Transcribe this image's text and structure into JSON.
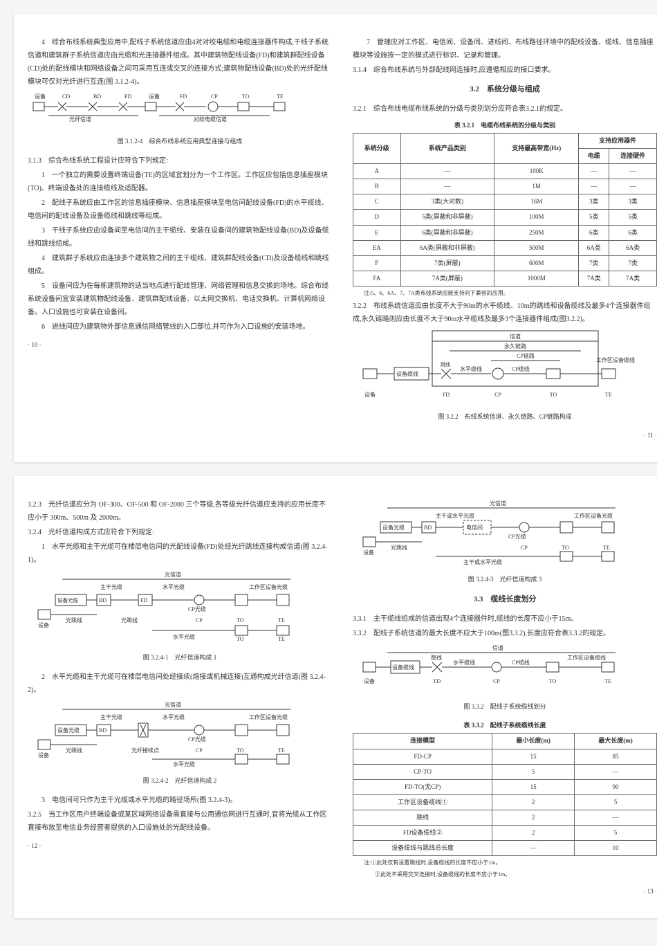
{
  "page1": {
    "left": {
      "p4": "4　综合布线系统典型应用中,配线子系统信道应由4对对绞电缆和电缆连接器件构成,干线子系统信道和建筑群子系统信道应由光缆和光连接器件组成。其中建筑物配线设备(FD)和建筑群配线设备(CD)处的配线模块和网络设备之间可采用互连或交叉的连接方式;建筑物配线设备(BD)处的光纤配线模块可仅对光纤进行互连(图 3.1.2-4)。",
      "fig312_4_cap": "图 3.1.2-4　综合布线系统应用典型连接与组成",
      "s313": "3.1.3　综合布线系统工程设计应符合下列规定:",
      "s313_1": "1　一个独立的需要设置终端设备(TE)的区域宜划分为一个工作区。工作区应包括信息插座模块(TO)、终端设备处的连接缆线及适配器。",
      "s313_2": "2　配线子系统应由工作区的信息插座模块、信息插座模块至电信间配线设备(FD)的水平缆线、电信间的配线设备及设备缆线和跳线等组成。",
      "s313_3": "3　干线子系统应由设备间至电信间的主干缆线、安装在设备间的建筑物配线设备(BD)及设备缆线和跳线组成。",
      "s313_4": "4　建筑群子系统应由连接多个建筑物之间的主干缆线、建筑群配线设备(CD)及设备缆线和跳线组成。",
      "s313_5": "5　设备间应为在每栋建筑物的适当地点进行配线管理、网络管理和信息交换的场地。综合布线系统设备间宜安装建筑物配线设备、建筑群配线设备、以太网交换机、电话交换机、计算机网络设备。入口设施也可安装在设备间。",
      "s313_6": "6　进线间应为建筑物外部信息通信网络管线的入口部位,并可作为入口设施的安装场地。",
      "pg": "· 10 ·"
    },
    "right": {
      "p7": "7　管理应对工作区、电信间、设备间、进线间、布线路径环境中的配线设备、缆线、信息插座模块等设施按一定的模式进行标识、记录和管理。",
      "s314": "3.1.4　综合布线系统与外部配线网连接时,应遵循相应的接口要求。",
      "title32": "3.2　系统分级与组成",
      "s321": "3.2.1　综合布线电缆布线系统的分级与类别划分应符合表3.2.1的规定。",
      "tbl321_cap": "表 3.2.1　电缆布线系统的分级与类别",
      "tbl321_head": [
        "系统分级",
        "系统产品类别",
        "支持最高带宽(Hz)",
        "支持应用器件"
      ],
      "tbl321_sub": [
        "电缆",
        "连接硬件"
      ],
      "tbl321_rows": [
        [
          "A",
          "—",
          "100K",
          "—",
          "—"
        ],
        [
          "B",
          "—",
          "1M",
          "—",
          "—"
        ],
        [
          "C",
          "3类(大对数)",
          "16M",
          "3类",
          "3类"
        ],
        [
          "D",
          "5类(屏蔽和非屏蔽)",
          "100M",
          "5类",
          "5类"
        ],
        [
          "E",
          "6类(屏蔽和非屏蔽)",
          "250M",
          "6类",
          "6类"
        ],
        [
          "EA",
          "6A类(屏蔽和非屏蔽)",
          "500M",
          "6A类",
          "6A类"
        ],
        [
          "F",
          "7类(屏蔽)",
          "600M",
          "7类",
          "7类"
        ],
        [
          "FA",
          "7A类(屏蔽)",
          "1000M",
          "7A类",
          "7A类"
        ]
      ],
      "tbl321_note": "注:5、6、6A、7、7A类布线系统应能支持向下兼容的应用。",
      "s322": "3.2.2　布线系统信道应由长度不大于90m的水平缆线、10m的跳线和设备缆线及最多4个连接器件组成,永久链路则应由长度不大于90m水平缆线及最多3个连接器件组成(图3.2.2)。",
      "fig322_cap": "图 3.2.2　布线系统信道、永久链路、CP链路构成",
      "pg": "· 11 ·"
    }
  },
  "page2": {
    "left": {
      "s323": "3.2.3　光纤信道应分为 OF-300、OF-500 和 OF-2000 三个等级,各等级光纤信道应支持的应用长度不应小于 300m、500m 及 2000m。",
      "s324": "3.2.4　光纤信道构成方式应符合下列规定:",
      "s324_1": "1　水平光缆和主干光缆可在楼层电信间的光配线设备(FD)处经光纤跳线连接构成信道(图 3.2.4-1)。",
      "fig3241_cap": "图 3.2.4-1　光纤信道构成 1",
      "s324_2": "2　水平光缆和主干光缆可在楼层电信间处经接续(熔接或机械连接)互通构成光纤信道(图 3.2.4-2)。",
      "fig3242_cap": "图 3.2.4-2　光纤信道构成 2",
      "s324_3": "3　电信间可只作为主干光缆或水平光缆的路径场所(图 3.2.4-3)。",
      "s325": "3.2.5　当工作区用户终端设备或某区域网络设备需直接与公用通信网进行互通时,宜将光缆从工作区直接布放至电信业务经营者提供的入口设施处的光配线设备。",
      "pg": "· 12 ·"
    },
    "right": {
      "fig3243_cap": "图 3.2.4-3　光纤信道构成 3",
      "title33": "3.3　缆线长度划分",
      "s331": "3.3.1　主干缆线组成的信道出现4个连接器件时,缆线的长度不应小于15m。",
      "s332": "3.3.2　配线子系统信道的最大长度不应大于100m(图3.3.2),长度应符合表3.3.2的规定。",
      "fig332_cap": "图 3.3.2　配线子系统缆线划分",
      "tbl332_cap": "表 3.3.2　配线子系统缆线长度",
      "tbl332_head": [
        "连接模型",
        "最小长度(m)",
        "最大长度(m)"
      ],
      "tbl332_rows": [
        [
          "FD-CP",
          "15",
          "85"
        ],
        [
          "CP-TO",
          "5",
          "—"
        ],
        [
          "FD-TO(无CP)",
          "15",
          "90"
        ],
        [
          "工作区设备缆线①",
          "2",
          "5"
        ],
        [
          "跳线",
          "2",
          "—"
        ],
        [
          "FD设备缆线②",
          "2",
          "5"
        ],
        [
          "设备缆线与跳线总长度",
          "—",
          "10"
        ]
      ],
      "tbl332_n1": "注:①此处仅有设置跳线时,设备缆线的长度不应小于1m。",
      "tbl332_n2": "　　②此处不采用交叉连接时,设备缆线的长度不应小于1m。",
      "pg": "· 13 ·"
    }
  },
  "diagrams": {
    "d1_labels": [
      "设备",
      "CD",
      "BD",
      "FD",
      "设备",
      "FD",
      "CP",
      "TO",
      "TE"
    ],
    "d1_notes": [
      "光纤信道",
      "对绞电缆信道"
    ],
    "d322_top": [
      "信道",
      "永久链路",
      "CP链路",
      "工作区设备缆线"
    ],
    "d322_row": [
      "设备缆线",
      "跳线",
      "水平缆线",
      "CP缆线"
    ],
    "d322_bot": [
      "设备",
      "FD",
      "CP",
      "TO",
      "TE"
    ],
    "d3241_top": "光信道",
    "d3241_row1": [
      "主干光缆",
      "水平光缆",
      "工作区设备光缆"
    ],
    "d3241_row2": [
      "设备光缆",
      "BD",
      "FD",
      "CP光缆"
    ],
    "d3241_bot": [
      "设备",
      "光跳线",
      "光跳线",
      "CP",
      "TO",
      "TE"
    ],
    "d3241_extra": [
      "水平光缆",
      "TO",
      "TE"
    ],
    "d3243_top": "光信道",
    "d3243_row1": [
      "主干或水平光缆",
      "工作区设备光缆"
    ],
    "d3243_row2": [
      "设备光缆",
      "BD",
      "电信间",
      "CP光缆"
    ],
    "d3243_bot": [
      "设备",
      "光跳线",
      "CP",
      "TO",
      "TE"
    ],
    "d3243_extra": [
      "主干或水平光缆",
      "TO",
      "TE"
    ],
    "d332_top": "信道",
    "d332_row": [
      "设备缆线",
      "跳线",
      "水平缆线",
      "CP缆线",
      "工作区设备缆线"
    ],
    "d332_bot": [
      "设备",
      "FD",
      "CP",
      "TO",
      "TE"
    ]
  }
}
